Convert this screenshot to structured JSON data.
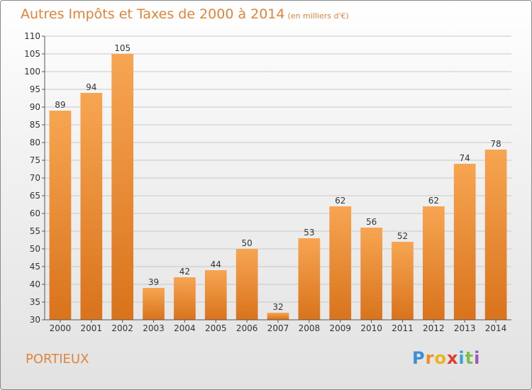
{
  "title": "Autres Impôts et Taxes de 2000 à 2014",
  "subtitle": "(en milliers d'€)",
  "commune": "PORTIEUX",
  "logo": {
    "letters": [
      "P",
      "r",
      "o",
      "x",
      "i",
      "t",
      "i"
    ],
    "colors": [
      "#3a8fd6",
      "#f08a24",
      "#e8b51e",
      "#e23c2e",
      "#3aa0d8",
      "#7cc04a",
      "#9b59b6"
    ]
  },
  "chart_data": {
    "type": "bar",
    "title": "Autres Impôts et Taxes de 2000 à 2014",
    "subtitle": "(en milliers d'€)",
    "categories": [
      "2000",
      "2001",
      "2002",
      "2003",
      "2004",
      "2005",
      "2006",
      "2007",
      "2008",
      "2009",
      "2010",
      "2011",
      "2012",
      "2013",
      "2014"
    ],
    "values": [
      89,
      94,
      105,
      39,
      42,
      44,
      50,
      32,
      53,
      62,
      56,
      52,
      62,
      74,
      78
    ],
    "ylim": [
      30,
      110
    ],
    "yticks": [
      30,
      35,
      40,
      45,
      50,
      55,
      60,
      65,
      70,
      75,
      80,
      85,
      90,
      95,
      100,
      105,
      110
    ],
    "grid": true,
    "bar_color": "#f08c2e",
    "bar_color_dark": "#d9731c"
  }
}
